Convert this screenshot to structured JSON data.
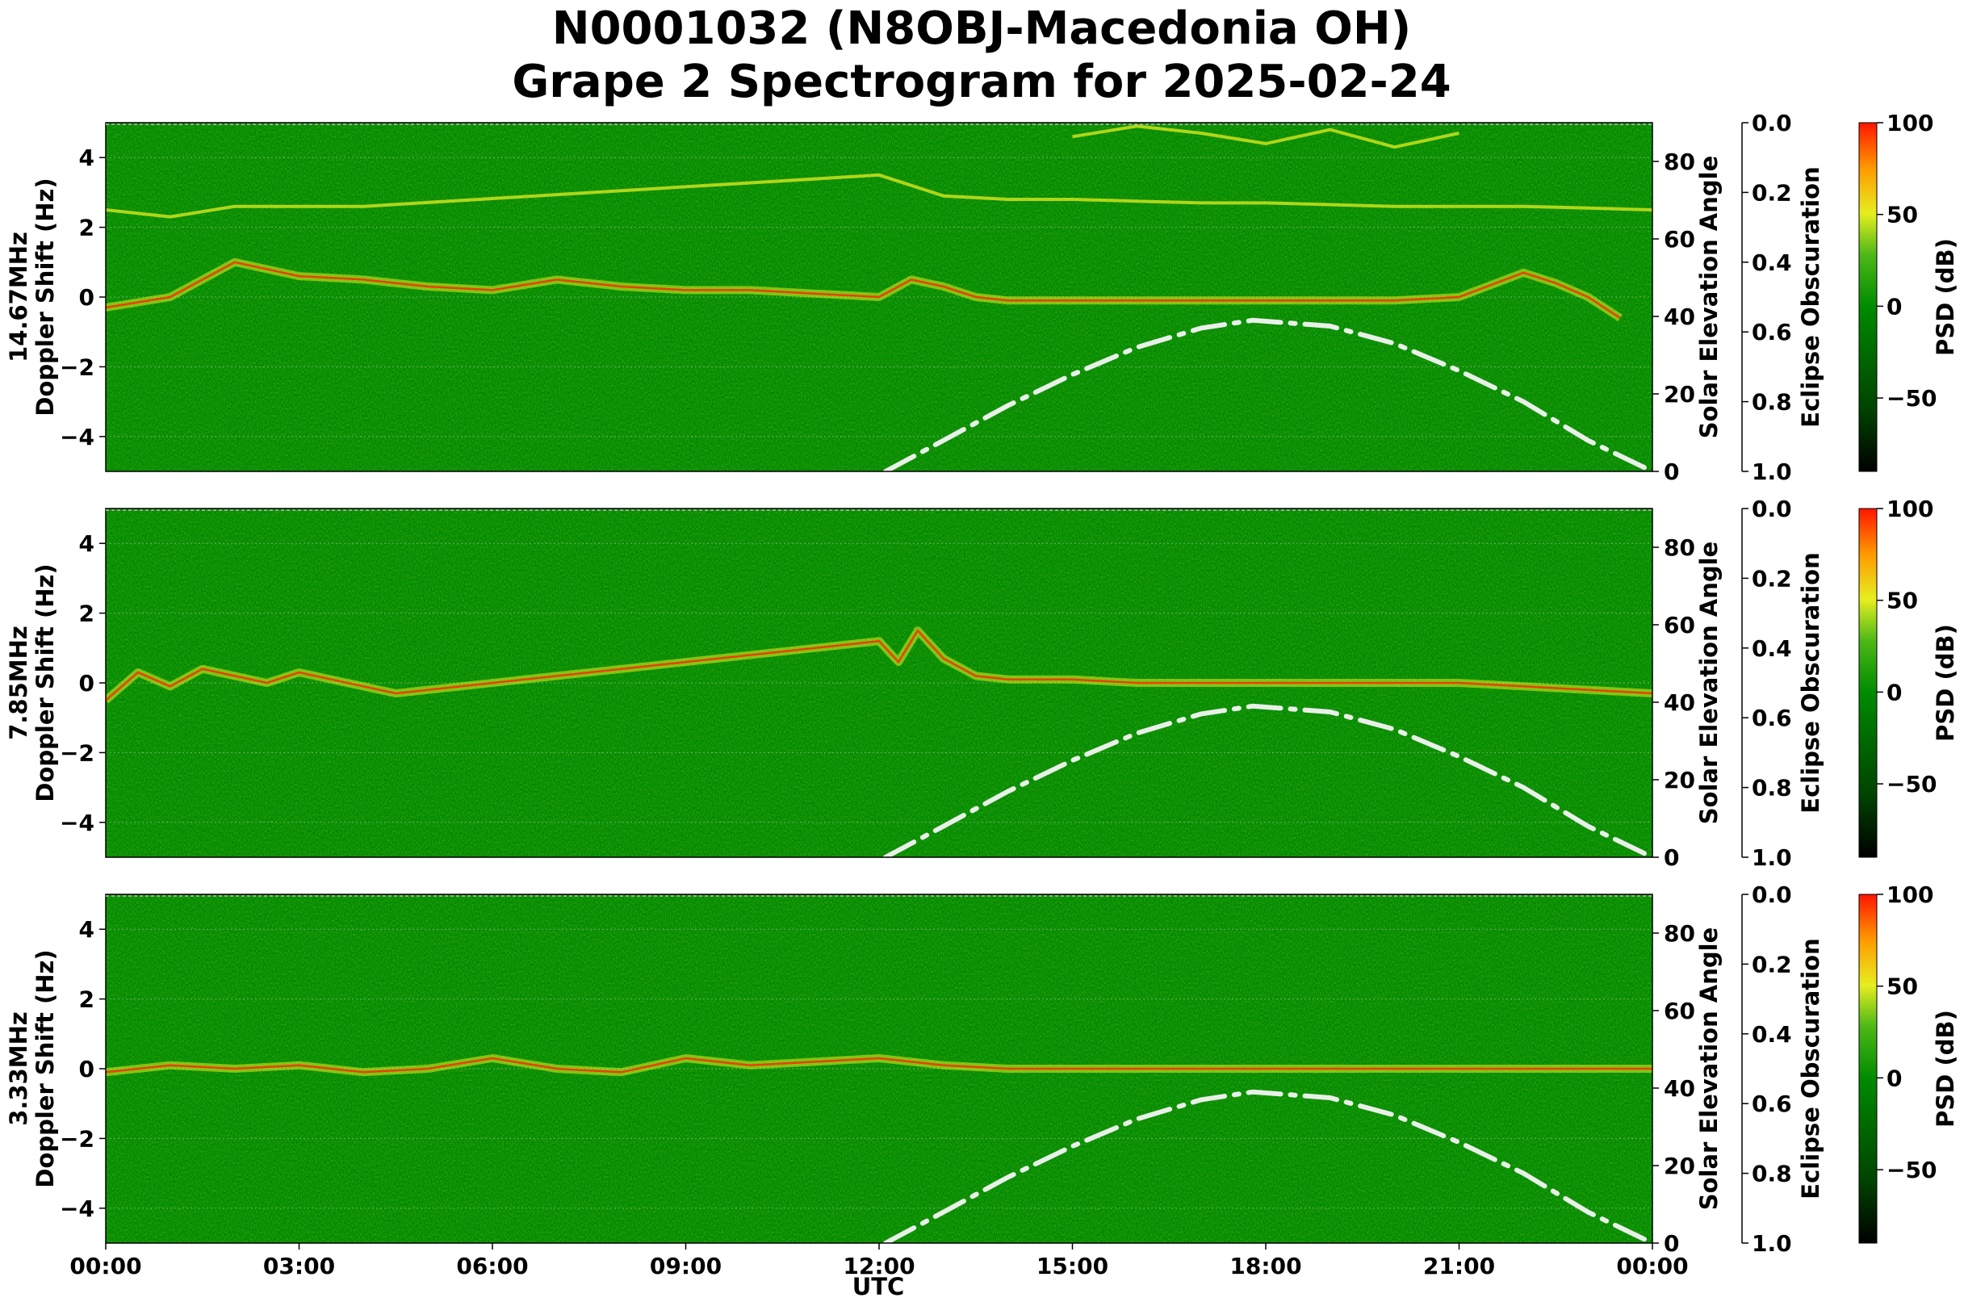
{
  "title_line1": "N0001032 (N8OBJ-Macedonia OH)",
  "title_line2": "Grape 2 Spectrogram for 2025-02-24",
  "chart_data": [
    {
      "type": "heatmap",
      "panel": "14.67MHz",
      "ylabel_freq": "14.67MHz",
      "ylabel": "Doppler Shift (Hz)",
      "ylim": [
        -5,
        5
      ],
      "yticks": [
        "4",
        "2",
        "0",
        "−2",
        "−4"
      ],
      "right_ylabel": "Solar Elevation Angle",
      "right_ylim": [
        0,
        90
      ],
      "right_yticks": [
        "80",
        "60",
        "40",
        "20",
        "0"
      ],
      "eclipse_label": "Eclipse Obscuration",
      "eclipse_ticks": [
        "0.0",
        "0.2",
        "0.4",
        "0.6",
        "0.8",
        "1.0"
      ],
      "colorbar_label": "PSD (dB)",
      "colorbar_ticks": [
        "100",
        "50",
        "0",
        "−50"
      ],
      "colorbar_range": [
        -90,
        100
      ],
      "doppler_traces": [
        {
          "name": "main carrier",
          "x": [
            0,
            1,
            2,
            3,
            4,
            5,
            6,
            7,
            8,
            9,
            10,
            11,
            12,
            12.5,
            13,
            13.5,
            14,
            15,
            16,
            17,
            18,
            19,
            20,
            21,
            22,
            22.5,
            23,
            23.5
          ],
          "y": [
            -0.3,
            0.0,
            1.0,
            0.6,
            0.5,
            0.3,
            0.2,
            0.5,
            0.3,
            0.2,
            0.2,
            0.1,
            0.0,
            0.5,
            0.3,
            0.0,
            -0.1,
            -0.1,
            -0.1,
            -0.1,
            -0.1,
            -0.1,
            -0.1,
            0.0,
            0.7,
            0.4,
            0.0,
            -0.6
          ]
        },
        {
          "name": "upper trace",
          "x": [
            0,
            1,
            2,
            3,
            4,
            12,
            13,
            14,
            15,
            16,
            17,
            18,
            19,
            20,
            21,
            22,
            23,
            24
          ],
          "y": [
            2.5,
            2.3,
            2.6,
            2.6,
            2.6,
            3.5,
            2.9,
            2.8,
            2.8,
            2.75,
            2.7,
            2.7,
            2.65,
            2.6,
            2.6,
            2.6,
            2.55,
            2.5
          ]
        },
        {
          "name": "high trace",
          "x": [
            15,
            16,
            17,
            18,
            19,
            20,
            21
          ],
          "y": [
            4.6,
            4.9,
            4.7,
            4.4,
            4.8,
            4.3,
            4.7
          ]
        }
      ],
      "solar_elevation": {
        "x": [
          12.1,
          13,
          14,
          15,
          16,
          17,
          17.8,
          19,
          20,
          21,
          22,
          23,
          24
        ],
        "y": [
          0,
          8,
          17,
          25,
          32,
          37,
          39,
          37.5,
          33,
          26,
          18,
          8,
          0
        ]
      }
    },
    {
      "type": "heatmap",
      "panel": "7.85MHz",
      "ylabel_freq": "7.85MHz",
      "ylabel": "Doppler Shift (Hz)",
      "ylim": [
        -5,
        5
      ],
      "yticks": [
        "4",
        "2",
        "0",
        "−2",
        "−4"
      ],
      "right_ylabel": "Solar Elevation Angle",
      "right_ylim": [
        0,
        90
      ],
      "right_yticks": [
        "80",
        "60",
        "40",
        "20",
        "0"
      ],
      "eclipse_label": "Eclipse Obscuration",
      "eclipse_ticks": [
        "0.0",
        "0.2",
        "0.4",
        "0.6",
        "0.8",
        "1.0"
      ],
      "colorbar_label": "PSD (dB)",
      "colorbar_ticks": [
        "100",
        "50",
        "0",
        "−50"
      ],
      "colorbar_range": [
        -90,
        100
      ],
      "doppler_traces": [
        {
          "name": "main carrier",
          "x": [
            0,
            0.5,
            1,
            1.5,
            2,
            2.5,
            3,
            3.5,
            4,
            4.5,
            12,
            12.3,
            12.6,
            13,
            13.5,
            14,
            15,
            16,
            17,
            18,
            19,
            20,
            21,
            22,
            23,
            24
          ],
          "y": [
            -0.5,
            0.3,
            -0.1,
            0.4,
            0.2,
            0.0,
            0.3,
            0.1,
            -0.1,
            -0.3,
            1.2,
            0.6,
            1.5,
            0.7,
            0.2,
            0.1,
            0.1,
            0.0,
            0.0,
            0.0,
            0.0,
            0.0,
            0.0,
            -0.1,
            -0.2,
            -0.3
          ]
        }
      ],
      "solar_elevation": {
        "x": [
          12.1,
          13,
          14,
          15,
          16,
          17,
          17.8,
          19,
          20,
          21,
          22,
          23,
          24
        ],
        "y": [
          0,
          8,
          17,
          25,
          32,
          37,
          39,
          37.5,
          33,
          26,
          18,
          8,
          0
        ]
      }
    },
    {
      "type": "heatmap",
      "panel": "3.33MHz",
      "ylabel_freq": "3.33MHz",
      "ylabel": "Doppler Shift (Hz)",
      "ylim": [
        -5,
        5
      ],
      "yticks": [
        "4",
        "2",
        "0",
        "−2",
        "−4"
      ],
      "right_ylabel": "Solar Elevation Angle",
      "right_ylim": [
        0,
        90
      ],
      "right_yticks": [
        "80",
        "60",
        "40",
        "20",
        "0"
      ],
      "eclipse_label": "Eclipse Obscuration",
      "eclipse_ticks": [
        "0.0",
        "0.2",
        "0.4",
        "0.6",
        "0.8",
        "1.0"
      ],
      "colorbar_label": "PSD (dB)",
      "colorbar_ticks": [
        "100",
        "50",
        "0",
        "−50"
      ],
      "colorbar_range": [
        -90,
        100
      ],
      "doppler_traces": [
        {
          "name": "main carrier",
          "x": [
            0,
            1,
            2,
            3,
            4,
            5,
            6,
            7,
            8,
            9,
            10,
            11,
            12,
            13,
            14,
            16,
            18,
            20,
            22,
            23,
            24
          ],
          "y": [
            -0.1,
            0.1,
            0.0,
            0.1,
            -0.1,
            0.0,
            0.3,
            0.0,
            -0.1,
            0.3,
            0.1,
            0.2,
            0.3,
            0.1,
            0.0,
            0.0,
            0.0,
            0.0,
            0.0,
            0.0,
            0.0
          ]
        }
      ],
      "solar_elevation": {
        "x": [
          12.1,
          13,
          14,
          15,
          16,
          17,
          17.8,
          19,
          20,
          21,
          22,
          23,
          24
        ],
        "y": [
          0,
          8,
          17,
          25,
          32,
          37,
          39,
          37.5,
          33,
          26,
          18,
          8,
          0
        ]
      }
    }
  ],
  "xlabel": "UTC",
  "xticks": [
    "00:00",
    "03:00",
    "06:00",
    "09:00",
    "12:00",
    "15:00",
    "18:00",
    "21:00",
    "00:00"
  ],
  "xlim": [
    0,
    24
  ],
  "colors": {
    "background_green": "#008a00",
    "signal_yellow": "#e6ee20",
    "peak_red": "#ff2200",
    "solar_curve": "#e8f0e8"
  }
}
